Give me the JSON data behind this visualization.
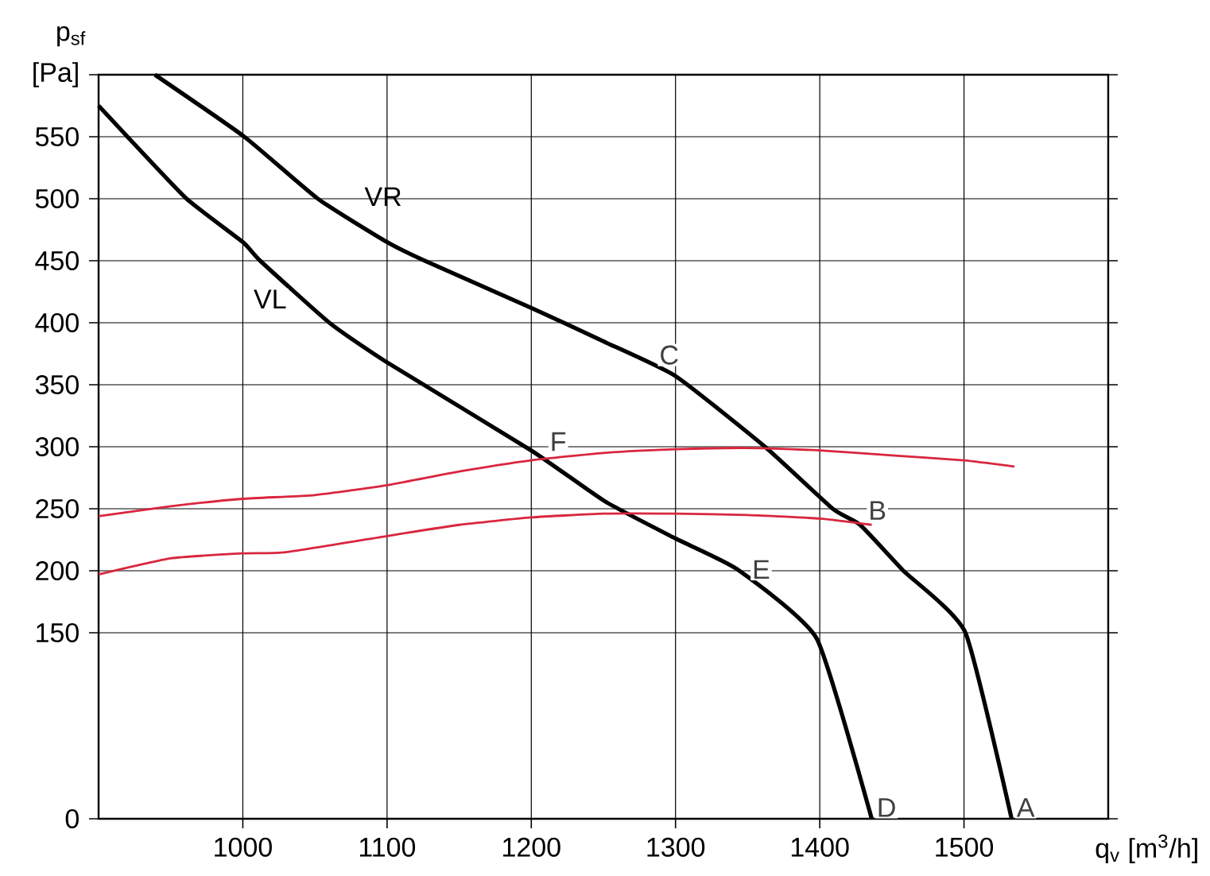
{
  "chart_data": {
    "type": "line",
    "ylabel": "p$_{sf}$",
    "xlabel": "q$_{v}$ [m$^{3}$/h]",
    "xlim": [
      900,
      1600
    ],
    "ylim": [
      0,
      600
    ],
    "xticks": [
      1000,
      1100,
      1200,
      1300,
      1400,
      1500
    ],
    "yticks": [
      0,
      150,
      200,
      250,
      300,
      350,
      400,
      450,
      500,
      550,
      {
        "value": 600,
        "label": "[Pa]"
      }
    ],
    "grid": true,
    "series": [
      {
        "name": "VR",
        "color": "#000000",
        "x": [
          939,
          1001,
          1052,
          1100,
          1126,
          1200,
          1250,
          1300,
          1362,
          1409,
          1428,
          1458,
          1501,
          1533
        ],
        "values": [
          600,
          550,
          500,
          465,
          450,
          412,
          385,
          357,
          300,
          250,
          237,
          200,
          150,
          0
        ]
      },
      {
        "name": "VL",
        "color": "#000000",
        "x": [
          900,
          920,
          961,
          1000,
          1012,
          1060,
          1100,
          1200,
          1251,
          1300,
          1343,
          1398,
          1436
        ],
        "values": [
          575,
          550,
          500,
          465,
          450,
          400,
          368,
          297,
          256,
          226,
          201,
          145,
          0
        ]
      },
      {
        "color": "#d9263e",
        "x": [
          900,
          950,
          1000,
          1050,
          1100,
          1150,
          1200,
          1250,
          1300,
          1350,
          1400,
          1450,
          1500,
          1535
        ],
        "values": [
          244,
          252,
          258,
          261,
          269,
          280,
          289,
          295,
          298,
          299,
          297,
          293,
          289,
          284
        ]
      },
      {
        "color": "#d9263e",
        "x": [
          900,
          950,
          1000,
          1030,
          1100,
          1150,
          1200,
          1250,
          1300,
          1350,
          1400,
          1436
        ],
        "values": [
          197,
          210,
          214,
          215,
          228,
          237,
          243,
          246,
          246,
          245,
          242,
          237
        ]
      }
    ],
    "annotations": [
      {
        "text": "A",
        "x": 1533,
        "y": 0
      },
      {
        "text": "B",
        "x": 1428,
        "y": 237
      },
      {
        "text": "C",
        "x": 1300,
        "y": 357
      },
      {
        "text": "D",
        "x": 1436,
        "y": 0
      },
      {
        "text": "E",
        "x": 1343,
        "y": 201
      },
      {
        "text": "F",
        "x": 1205,
        "y": 290
      }
    ]
  }
}
